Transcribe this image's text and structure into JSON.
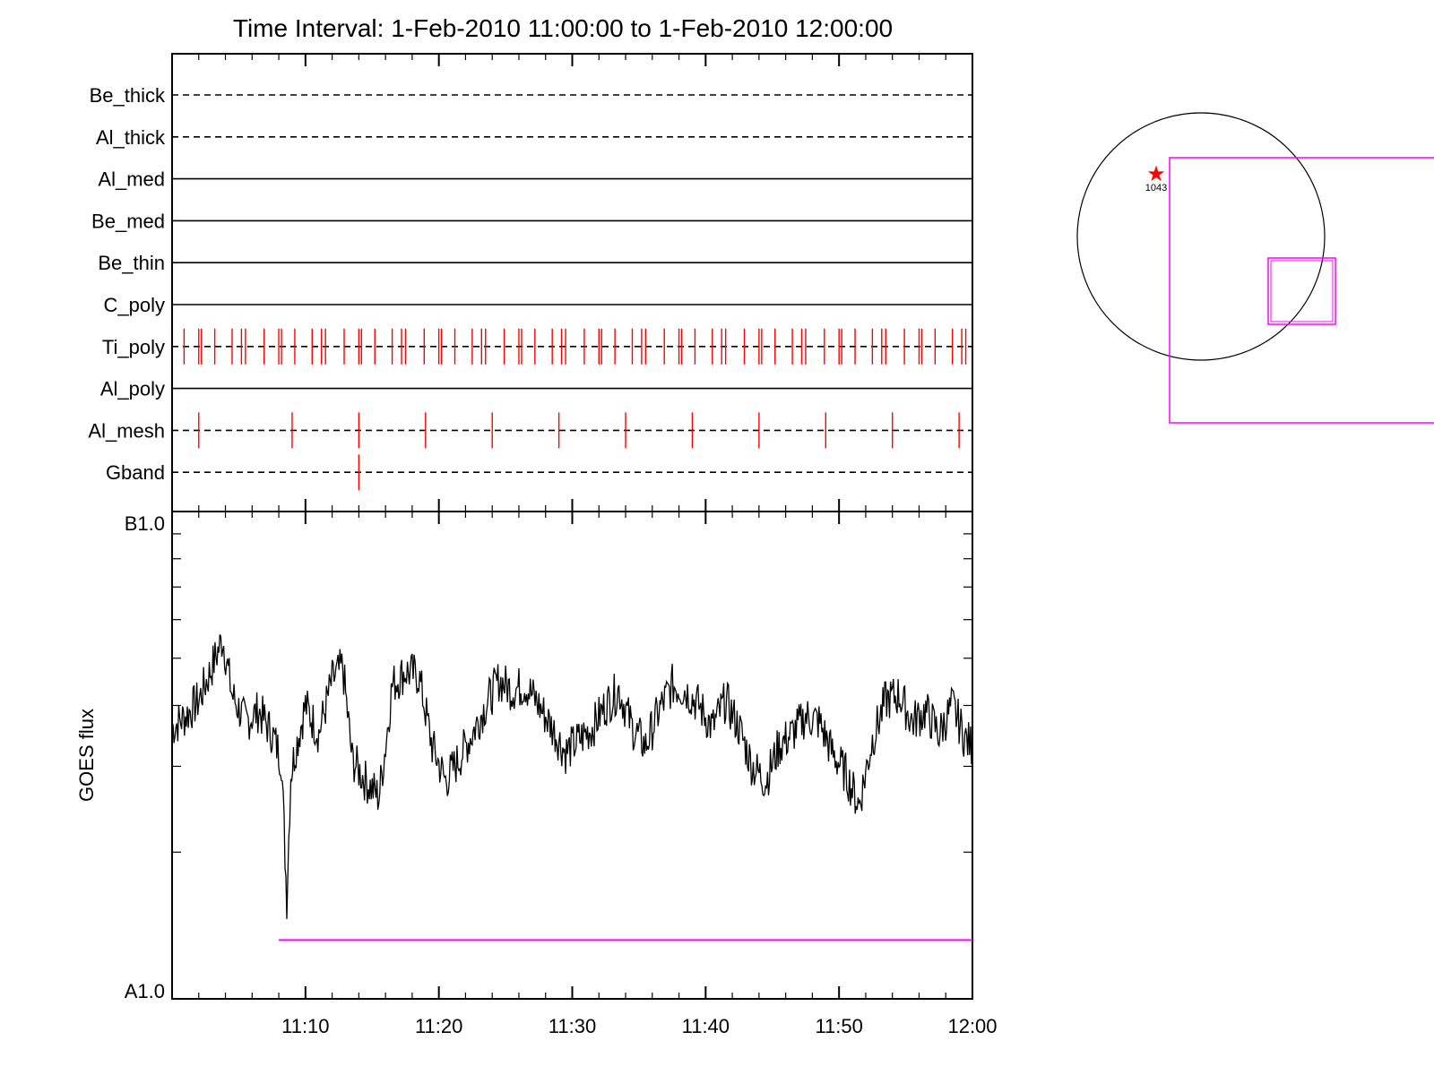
{
  "title": "Time Interval:  1-Feb-2010 11:00:00 to  1-Feb-2010 12:00:00",
  "colors": {
    "axis": "#000000",
    "exposure": "#ff0000",
    "goes": "#000000",
    "magenta": "#ff00ff",
    "star": "#ff0000"
  },
  "chart_data": [
    {
      "type": "timeline",
      "time_range": [
        "11:00:00",
        "12:00:00"
      ],
      "tick_labels": [
        "11:10",
        "11:20",
        "11:30",
        "11:40",
        "11:50",
        "12:00"
      ],
      "filters": [
        {
          "name": "Be_thick",
          "line": "dashed",
          "exposures": []
        },
        {
          "name": "Al_thick",
          "line": "dashed",
          "exposures": []
        },
        {
          "name": "Al_med",
          "line": "solid",
          "exposures": []
        },
        {
          "name": "Be_med",
          "line": "solid",
          "exposures": []
        },
        {
          "name": "Be_thin",
          "line": "solid",
          "exposures": []
        },
        {
          "name": "C_poly",
          "line": "solid",
          "exposures": []
        },
        {
          "name": "Ti_poly",
          "line": "dashed",
          "exposures": [
            0.9,
            2.0,
            2.2,
            3.2,
            4.5,
            5.2,
            5.5,
            6.9,
            8.0,
            8.2,
            9.2,
            10.5,
            11.2,
            11.5,
            12.9,
            14.0,
            14.2,
            15.2,
            16.5,
            17.2,
            17.5,
            18.9,
            20.0,
            20.2,
            21.2,
            22.5,
            23.2,
            23.5,
            24.9,
            26.0,
            26.2,
            27.2,
            28.5,
            29.2,
            29.5,
            30.9,
            32.0,
            32.2,
            33.2,
            34.5,
            35.2,
            35.5,
            36.9,
            38.0,
            38.2,
            39.2,
            40.5,
            41.2,
            41.5,
            42.9,
            44.0,
            44.2,
            45.2,
            46.5,
            47.2,
            47.5,
            48.9,
            50.0,
            50.2,
            51.2,
            52.5,
            53.2,
            53.5,
            54.9,
            56.0,
            56.2,
            57.2,
            58.5,
            59.2,
            59.5
          ]
        },
        {
          "name": "Al_poly",
          "line": "solid",
          "exposures": []
        },
        {
          "name": "Al_mesh",
          "line": "dashed",
          "exposures": [
            2.0,
            9.0,
            14.0,
            19.0,
            24.0,
            29.0,
            34.0,
            39.0,
            44.0,
            49.0,
            54.0,
            59.0
          ]
        },
        {
          "name": "Gband",
          "line": "dashed",
          "exposures": [
            14.0
          ]
        }
      ]
    },
    {
      "type": "line",
      "ylabel": "GOES flux",
      "ylim_labels": [
        "A1.0",
        "B1.0"
      ],
      "y_scale": "log",
      "y_range": [
        1e-08,
        1e-07
      ],
      "x_range_minutes": [
        0,
        60
      ],
      "series": [
        {
          "minute": [
            0,
            1,
            2,
            3,
            3.8,
            4.5,
            5.5,
            6.5,
            7.5,
            8.2,
            8.6,
            8.9,
            9.3,
            10,
            11,
            12,
            12.8,
            13.5,
            14.5,
            15.5,
            16,
            16.5,
            17.5,
            18.5,
            19.5,
            20.5,
            21.5,
            22.5,
            23.5,
            24.5,
            25.5,
            26.5,
            27.5,
            28.5,
            29.5,
            30.5,
            31.5,
            32.5,
            33.5,
            34.5,
            35.5,
            36.5,
            37.5,
            38.5,
            39.5,
            40.5,
            41.5,
            42.5,
            43.5,
            44.5,
            45.5,
            46.5,
            47.5,
            48.5,
            49.5,
            50.5,
            51.5,
            52.5,
            53.5,
            54.5,
            55.5,
            56.5,
            57.5,
            58.5,
            59.5,
            60
          ],
          "flux": [
            3.6e-08,
            3.8e-08,
            4.1e-08,
            4.8e-08,
            5.5e-08,
            4.2e-08,
            3.7e-08,
            3.9e-08,
            3.5e-08,
            3.1e-08,
            1.6e-08,
            2.9e-08,
            3.3e-08,
            4e-08,
            3.5e-08,
            4.5e-08,
            4.8e-08,
            3.1e-08,
            2.8e-08,
            2.6e-08,
            3.3e-08,
            4.4e-08,
            4.7e-08,
            4.6e-08,
            3.3e-08,
            2.8e-08,
            3.1e-08,
            3.5e-08,
            4e-08,
            4.5e-08,
            4.3e-08,
            4.4e-08,
            4e-08,
            3.6e-08,
            3.2e-08,
            3.4e-08,
            3.6e-08,
            4e-08,
            4.3e-08,
            3.6e-08,
            3.3e-08,
            3.9e-08,
            4.4e-08,
            4.3e-08,
            4e-08,
            3.6e-08,
            4.1e-08,
            3.6e-08,
            3e-08,
            2.8e-08,
            3.3e-08,
            3.5e-08,
            3.8e-08,
            3.7e-08,
            3.2e-08,
            2.9e-08,
            2.5e-08,
            3.4e-08,
            4.1e-08,
            4.2e-08,
            3.7e-08,
            3.9e-08,
            3.5e-08,
            4e-08,
            3.4e-08,
            3.3e-08
          ]
        }
      ],
      "threshold": {
        "start_minute": 8.0,
        "end_minute": 60,
        "flux": 1.32e-08
      }
    }
  ],
  "sun_map": {
    "active_region": "1043"
  }
}
